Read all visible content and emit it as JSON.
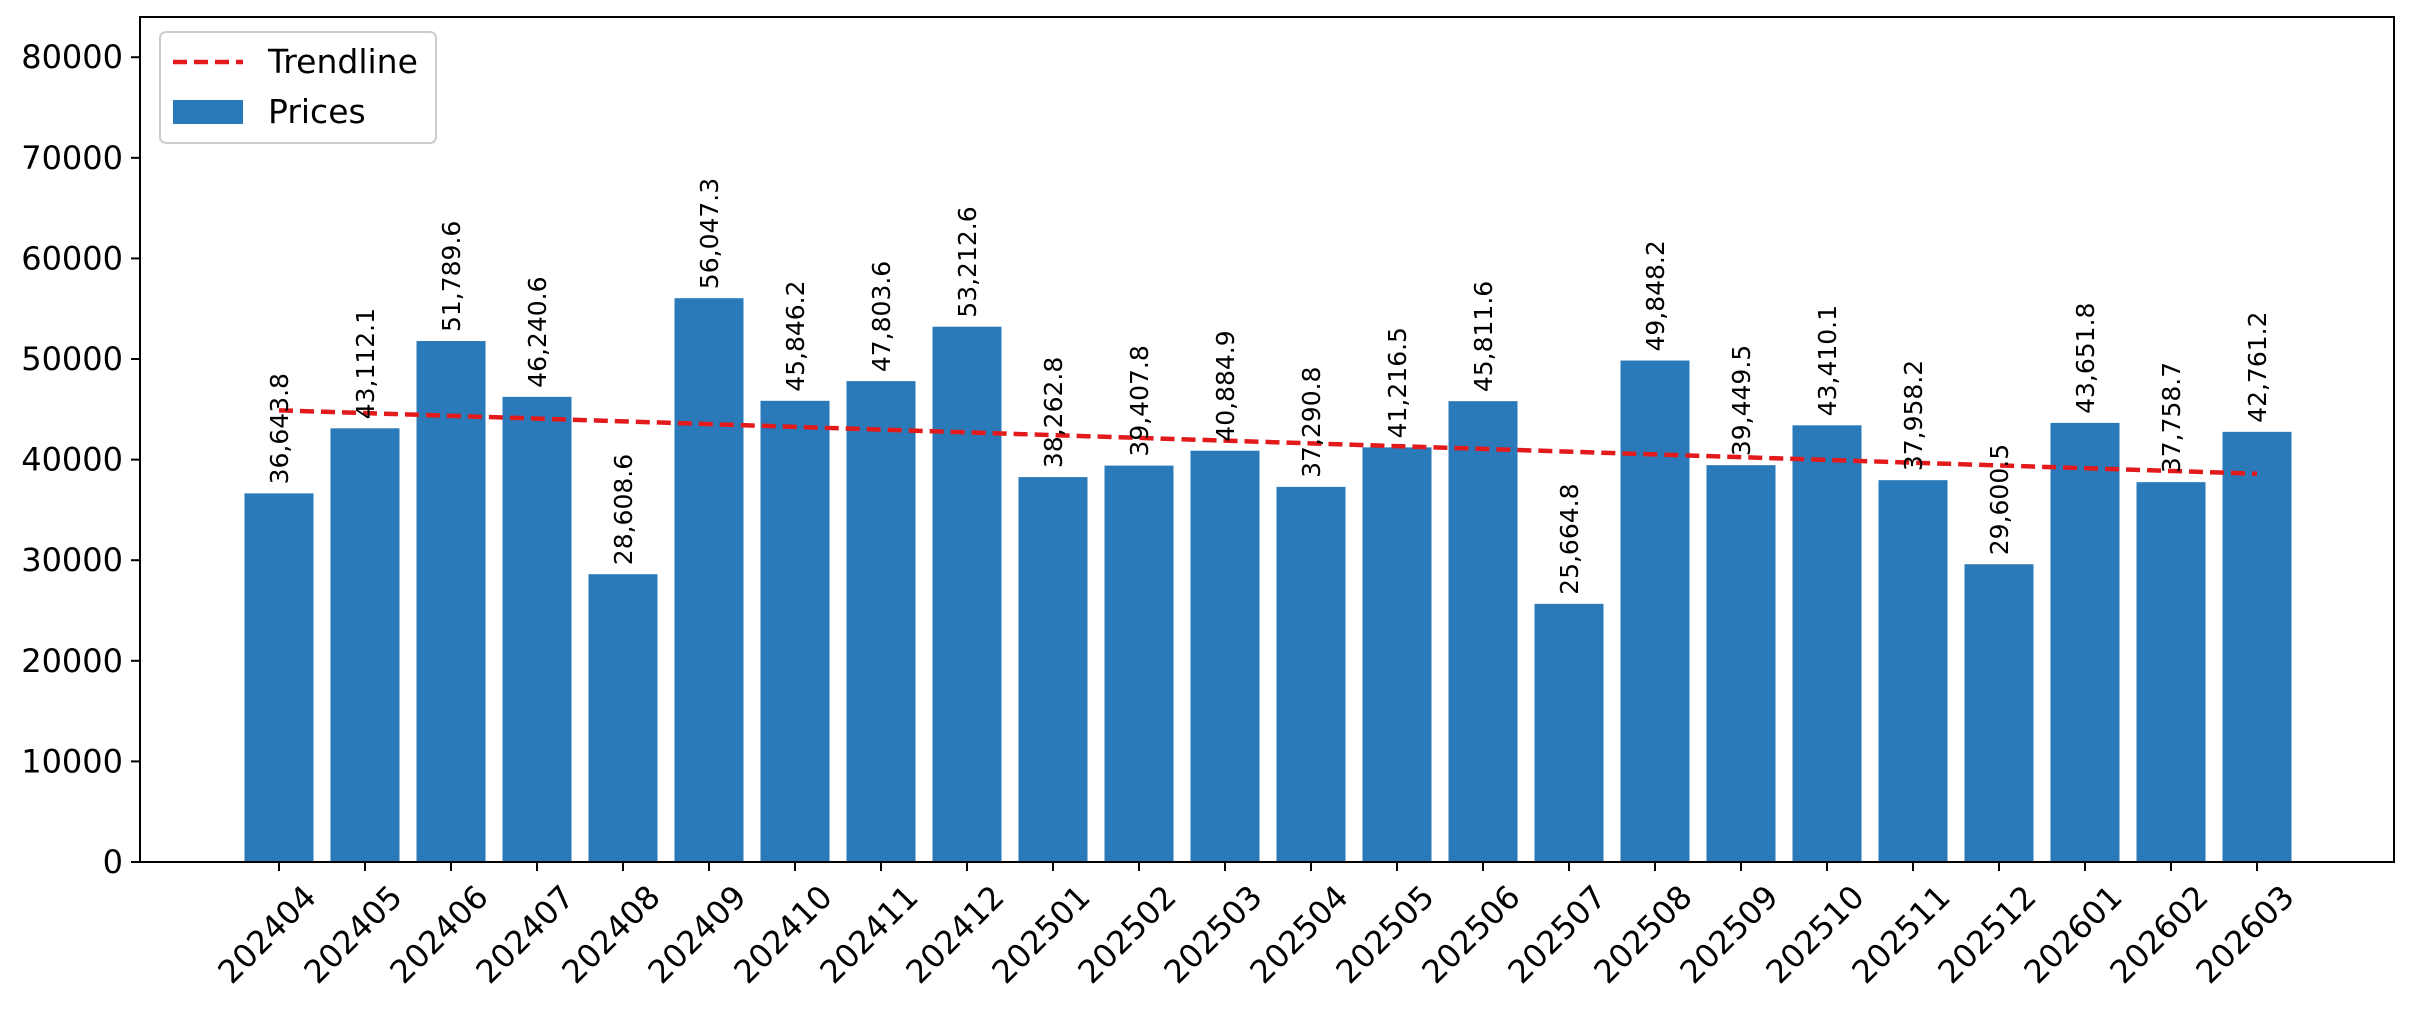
{
  "chart_data": {
    "type": "bar",
    "title": "",
    "xlabel": "",
    "ylabel": "",
    "ylim": [
      0,
      84000
    ],
    "y_ticks": [
      0,
      10000,
      20000,
      30000,
      40000,
      50000,
      60000,
      70000,
      80000
    ],
    "grid": false,
    "legend_placement": "top-left",
    "categories": [
      "202404",
      "202405",
      "202406",
      "202407",
      "202408",
      "202409",
      "202410",
      "202411",
      "202412",
      "202501",
      "202502",
      "202503",
      "202504",
      "202505",
      "202506",
      "202507",
      "202508",
      "202509",
      "202510",
      "202511",
      "202512",
      "202601",
      "202602",
      "202603"
    ],
    "series": [
      {
        "name": "Prices",
        "kind": "bar",
        "color": "#2a7ab9",
        "values": [
          36643.8,
          43112.1,
          51789.6,
          46240.6,
          28608.6,
          56047.3,
          45846.2,
          47803.6,
          53212.6,
          38262.8,
          39407.8,
          40884.9,
          37290.8,
          41216.5,
          45811.6,
          25664.8,
          49848.2,
          39449.5,
          43410.1,
          37958.2,
          29600.5,
          43651.8,
          37758.7,
          42761.2
        ],
        "labels": [
          "36,643.8",
          "43,112.1",
          "51,789.6",
          "46,240.6",
          "28,608.6",
          "56,047.3",
          "45,846.2",
          "47,803.6",
          "53,212.6",
          "38,262.8",
          "39,407.8",
          "40,884.9",
          "37,290.8",
          "41,216.5",
          "45,811.6",
          "25,664.8",
          "49,848.2",
          "39,449.5",
          "43,410.1",
          "37,958.2",
          "29,600.5",
          "43,651.8",
          "37,758.7",
          "42,761.2"
        ]
      },
      {
        "name": "Trendline",
        "kind": "line",
        "style": "dashed",
        "color": "#e31a1c",
        "start": 44900,
        "end": 38600
      }
    ]
  }
}
